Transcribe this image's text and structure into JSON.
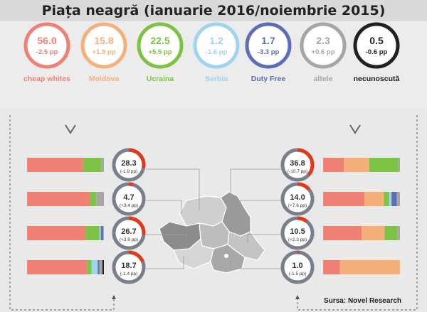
{
  "title": "Piața neagră (ianuarie 2016/noiembrie 2015)",
  "source": "Sursa: Novel Research",
  "colors": {
    "cheap_whites": "#f08074",
    "moldova": "#f5b07a",
    "ucraina": "#7cc243",
    "serbia": "#9fd4f0",
    "duty_free": "#5d6eb5",
    "altele": "#a6a6a6",
    "necunoscuta": "#222222",
    "ring_track": "#7a7f8e",
    "ring_value": "#e2381b"
  },
  "chart_data": [
    {
      "type": "donut",
      "series": [
        {
          "name": "cheap whites",
          "value": 56.0,
          "change": "-2.5 pp",
          "color": "#f08074"
        },
        {
          "name": "Moldova",
          "value": 15.8,
          "change": "+1.9 pp",
          "color": "#f5b07a"
        },
        {
          "name": "Ucraina",
          "value": 22.5,
          "change": "+5.5 pp",
          "color": "#7cc243"
        },
        {
          "name": "Serbia",
          "value": 1.2,
          "change": "-1.6 pp",
          "color": "#9fd4f0"
        },
        {
          "name": "Duty Free",
          "value": 1.7,
          "change": "-3.3 pp",
          "color": "#5d6eb5"
        },
        {
          "name": "altele",
          "value": 2.3,
          "change": "+0.6 pp",
          "color": "#a6a6a6"
        },
        {
          "name": "necunoscută",
          "value": 0.5,
          "change": "-0.6 pp",
          "color": "#222222"
        }
      ]
    },
    {
      "type": "bar",
      "stacked": true,
      "orientation": "horizontal",
      "regions": [
        {
          "side": "left",
          "value": "28.3",
          "change": "(-1.9 pp)",
          "pct": 28.3,
          "segments": [
            73,
            0,
            24,
            0,
            0,
            3,
            0
          ]
        },
        {
          "side": "left",
          "value": "4.7",
          "change": "(+3.4 pp)",
          "pct": 4.7,
          "segments": [
            82,
            0,
            8,
            0,
            0,
            10,
            0
          ]
        },
        {
          "side": "left",
          "value": "26.7",
          "change": "(+3.9 pp)",
          "pct": 26.7,
          "segments": [
            76,
            0,
            18,
            2,
            3,
            1,
            0
          ]
        },
        {
          "side": "left",
          "value": "18.7",
          "change": "(-1.4 pp)",
          "pct": 18.7,
          "segments": [
            78,
            0,
            6,
            8,
            2,
            4,
            2
          ]
        },
        {
          "side": "right",
          "value": "36.8",
          "change": "(-10.7 pp)",
          "pct": 36.8,
          "segments": [
            27,
            33,
            38,
            0,
            0,
            2,
            0
          ]
        },
        {
          "side": "right",
          "value": "14.0",
          "change": "(+7.6 pp)",
          "pct": 14.0,
          "segments": [
            54,
            25,
            7,
            3,
            7,
            4,
            0
          ]
        },
        {
          "side": "right",
          "value": "10.5",
          "change": "(+2.3 pp)",
          "pct": 10.5,
          "segments": [
            50,
            30,
            17,
            0,
            0,
            3,
            0
          ]
        },
        {
          "side": "right",
          "value": "1.0",
          "change": "(-1.5 pp)",
          "pct": 1.0,
          "segments": [
            22,
            78,
            0,
            0,
            0,
            0,
            0
          ]
        }
      ]
    }
  ]
}
